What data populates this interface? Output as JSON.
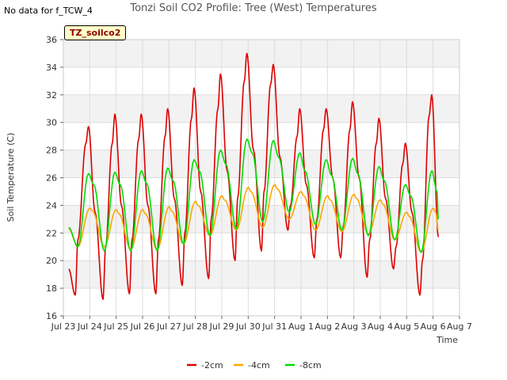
{
  "header": {
    "corner_note": "No data for f_TCW_4",
    "title": "Tonzi Soil CO2 Profile: Tree (West) Temperatures",
    "tag": "TZ_soilco2"
  },
  "chart_data": {
    "type": "line",
    "title": "Tonzi Soil CO2 Profile: Tree (West) Temperatures",
    "xlabel": "Time",
    "ylabel": "Soil Temperature (C)",
    "xlim": [
      0,
      15
    ],
    "ylim": [
      16,
      36
    ],
    "yticks": [
      16,
      18,
      20,
      22,
      24,
      26,
      28,
      30,
      32,
      34,
      36
    ],
    "xtick_labels": [
      "Jul 23",
      "Jul 24",
      "Jul 25",
      "Jul 26",
      "Jul 27",
      "Jul 28",
      "Jul 29",
      "Jul 30",
      "Jul 31",
      "Aug 1",
      "Aug 2",
      "Aug 3",
      "Aug 4",
      "Aug 5",
      "Aug 6",
      "Aug 7"
    ],
    "grid": true,
    "legend_position": "bottom",
    "series": [
      {
        "name": "-2cm",
        "color": "#dd0000",
        "x": [
          0.2,
          0.45,
          0.55,
          0.85,
          0.95,
          1.2,
          1.5,
          1.6,
          1.85,
          1.95,
          2.2,
          2.5,
          2.6,
          2.85,
          2.95,
          3.2,
          3.5,
          3.6,
          3.85,
          3.95,
          4.2,
          4.5,
          4.6,
          4.85,
          4.95,
          5.2,
          5.5,
          5.6,
          5.85,
          5.95,
          6.2,
          6.5,
          6.6,
          6.85,
          6.95,
          7.2,
          7.5,
          7.6,
          7.85,
          7.95,
          8.2,
          8.5,
          8.6,
          8.85,
          8.95,
          9.2,
          9.5,
          9.6,
          9.85,
          9.95,
          10.2,
          10.5,
          10.6,
          10.85,
          10.95,
          11.2,
          11.5,
          11.6,
          11.85,
          11.95,
          12.2,
          12.5,
          12.6,
          12.85,
          12.95,
          13.2,
          13.5,
          13.6,
          13.85,
          13.95,
          14.2
        ],
        "y": [
          19.4,
          17.5,
          21.5,
          28.5,
          29.7,
          23.5,
          17.2,
          21.0,
          28.5,
          30.6,
          24.0,
          17.6,
          21.5,
          28.8,
          30.6,
          24.0,
          17.6,
          21.5,
          29.0,
          31.0,
          24.5,
          18.2,
          22.0,
          30.3,
          32.5,
          25.0,
          18.7,
          23.0,
          31.0,
          33.5,
          26.5,
          20.0,
          24.5,
          33.0,
          35.0,
          28.0,
          20.7,
          25.0,
          32.8,
          34.2,
          27.5,
          22.2,
          24.0,
          29.0,
          31.0,
          25.5,
          20.2,
          23.0,
          29.5,
          31.0,
          26.0,
          20.2,
          22.5,
          29.5,
          31.5,
          26.0,
          18.8,
          21.5,
          28.5,
          30.3,
          24.5,
          19.4,
          21.0,
          27.0,
          28.5,
          23.5,
          17.5,
          20.0,
          30.5,
          32.0,
          21.7
        ]
      },
      {
        "name": "-4cm",
        "color": "#ffa500",
        "x": [
          0.2,
          0.55,
          1.0,
          1.1,
          1.55,
          2.0,
          2.1,
          2.55,
          3.0,
          3.1,
          3.55,
          4.0,
          4.1,
          4.55,
          5.0,
          5.1,
          5.55,
          6.0,
          6.1,
          6.55,
          7.0,
          7.1,
          7.55,
          8.0,
          8.1,
          8.55,
          9.0,
          9.1,
          9.55,
          10.0,
          10.1,
          10.55,
          11.0,
          11.1,
          11.55,
          12.0,
          12.1,
          12.55,
          13.0,
          13.1,
          13.55,
          14.0,
          14.1,
          14.2
        ],
        "y": [
          22.3,
          21.0,
          23.8,
          23.6,
          21.0,
          23.7,
          23.4,
          20.8,
          23.7,
          23.4,
          20.8,
          23.9,
          23.6,
          21.2,
          24.3,
          24.0,
          21.8,
          24.7,
          24.4,
          22.2,
          25.3,
          25.0,
          22.4,
          25.5,
          25.2,
          23.0,
          25.0,
          24.7,
          22.2,
          24.7,
          24.4,
          22.1,
          24.8,
          24.5,
          21.9,
          24.4,
          24.1,
          21.5,
          23.5,
          23.2,
          20.6,
          23.8,
          23.5,
          22.2
        ]
      },
      {
        "name": "-8cm",
        "color": "#00dd00",
        "x": [
          0.2,
          0.55,
          0.95,
          1.15,
          1.55,
          1.95,
          2.15,
          2.55,
          2.95,
          3.15,
          3.55,
          3.95,
          4.15,
          4.55,
          4.95,
          5.15,
          5.55,
          5.95,
          6.15,
          6.55,
          6.95,
          7.15,
          7.55,
          7.95,
          8.15,
          8.55,
          8.95,
          9.15,
          9.55,
          9.95,
          10.15,
          10.55,
          10.95,
          11.15,
          11.55,
          11.95,
          12.15,
          12.55,
          12.95,
          13.15,
          13.55,
          13.95,
          14.15,
          14.2
        ],
        "y": [
          22.4,
          21.0,
          26.3,
          25.5,
          20.7,
          26.4,
          25.5,
          20.7,
          26.5,
          25.6,
          20.7,
          26.7,
          25.8,
          21.2,
          27.3,
          26.5,
          21.8,
          28.0,
          27.0,
          22.3,
          28.8,
          27.8,
          22.8,
          28.7,
          27.5,
          23.5,
          27.8,
          26.5,
          22.6,
          27.3,
          26.2,
          22.2,
          27.4,
          26.3,
          21.8,
          26.8,
          25.8,
          21.5,
          25.5,
          24.7,
          20.6,
          26.5,
          25.0,
          23.0
        ]
      }
    ]
  }
}
